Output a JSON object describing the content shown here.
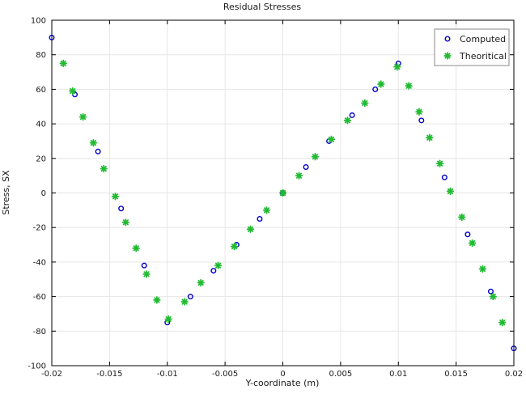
{
  "chart_data": {
    "type": "scatter",
    "title": "Residual Stresses",
    "xlabel": "Y-coordinate (m)",
    "ylabel": "Stress, SX",
    "xlim": [
      -0.02,
      0.02
    ],
    "ylim": [
      -100,
      100
    ],
    "grid": true,
    "legend_position": "top-right",
    "x_ticks": [
      -0.02,
      -0.015,
      -0.01,
      -0.005,
      0,
      0.005,
      0.01,
      0.015,
      0.02
    ],
    "x_tick_labels": [
      "-0.02",
      "-0.015",
      "-0.01",
      "-0.005",
      "0",
      "0.005",
      "0.01",
      "0.015",
      "0.02"
    ],
    "y_ticks": [
      -100,
      -80,
      -60,
      -40,
      -20,
      0,
      20,
      40,
      60,
      80,
      100
    ],
    "y_tick_labels": [
      "-100",
      "-80",
      "-60",
      "-40",
      "-20",
      "0",
      "20",
      "40",
      "60",
      "80",
      "100"
    ],
    "series": [
      {
        "name": "Computed",
        "marker": "circle",
        "color": "#0000cc",
        "x": [
          -0.02,
          -0.018,
          -0.016,
          -0.014,
          -0.012,
          -0.01,
          -0.008,
          -0.006,
          -0.004,
          -0.002,
          0,
          0.002,
          0.004,
          0.006,
          0.008,
          0.01,
          0.012,
          0.014,
          0.016,
          0.018,
          0.02
        ],
        "y": [
          90,
          57,
          24,
          -9,
          -42,
          -75,
          -60,
          -45,
          -30,
          -15,
          0,
          15,
          30,
          45,
          60,
          75,
          42,
          9,
          -24,
          -57,
          -90
        ]
      },
      {
        "name": "Theoritical",
        "marker": "asterisk",
        "color": "#22bb33",
        "x": [
          -0.019,
          -0.0182,
          -0.0173,
          -0.0164,
          -0.0155,
          -0.0145,
          -0.0136,
          -0.0127,
          -0.0118,
          -0.0109,
          -0.0099,
          -0.0085,
          -0.0071,
          -0.0056,
          -0.0042,
          -0.0028,
          -0.0014,
          0,
          0.0014,
          0.0028,
          0.0042,
          0.0056,
          0.0071,
          0.0085,
          0.0099,
          0.0109,
          0.0118,
          0.0127,
          0.0136,
          0.0145,
          0.0155,
          0.0164,
          0.0173,
          0.0182,
          0.019
        ],
        "y": [
          75,
          59,
          44,
          29,
          14,
          -2,
          -17,
          -32,
          -47,
          -62,
          -73,
          -63,
          -52,
          -42,
          -31,
          -21,
          -10,
          0,
          10,
          21,
          31,
          42,
          52,
          63,
          73,
          62,
          47,
          32,
          17,
          1,
          -14,
          -29,
          -44,
          -60,
          -75
        ]
      }
    ]
  }
}
